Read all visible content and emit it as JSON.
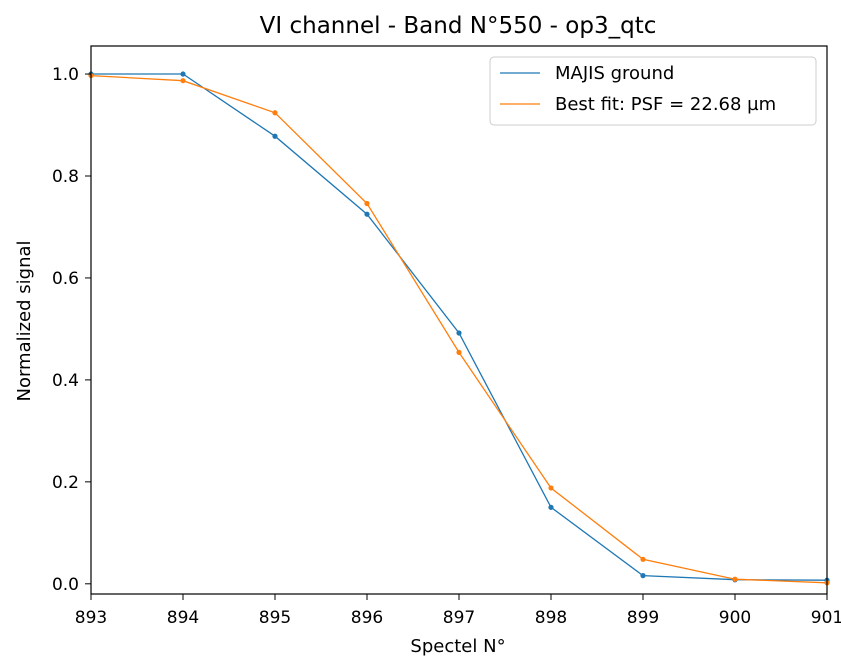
{
  "chart_data": {
    "type": "line",
    "title": "VI channel - Band N°550 - op3_qtc",
    "xlabel": "Spectel N°",
    "ylabel": "Normalized signal",
    "xlim": [
      893,
      901
    ],
    "ylim": [
      -0.02,
      1.055
    ],
    "xticks": [
      893,
      894,
      895,
      896,
      897,
      898,
      899,
      900,
      901
    ],
    "yticks": [
      0.0,
      0.2,
      0.4,
      0.6,
      0.8,
      1.0
    ],
    "ytick_labels": [
      "0.0",
      "0.2",
      "0.4",
      "0.6",
      "0.8",
      "1.0"
    ],
    "grid": false,
    "legend_position": "top-right",
    "x": [
      893,
      894,
      895,
      896,
      897,
      898,
      899,
      900,
      901
    ],
    "series": [
      {
        "name": "MAJIS ground",
        "color": "#1f77b4",
        "values": [
          1.0,
          1.0,
          0.878,
          0.725,
          0.492,
          0.15,
          0.016,
          0.008,
          0.007
        ]
      },
      {
        "name": "Best fit: PSF = 22.68 µm",
        "color": "#ff7f0e",
        "values": [
          0.997,
          0.987,
          0.924,
          0.746,
          0.454,
          0.188,
          0.048,
          0.009,
          0.002
        ]
      }
    ]
  }
}
